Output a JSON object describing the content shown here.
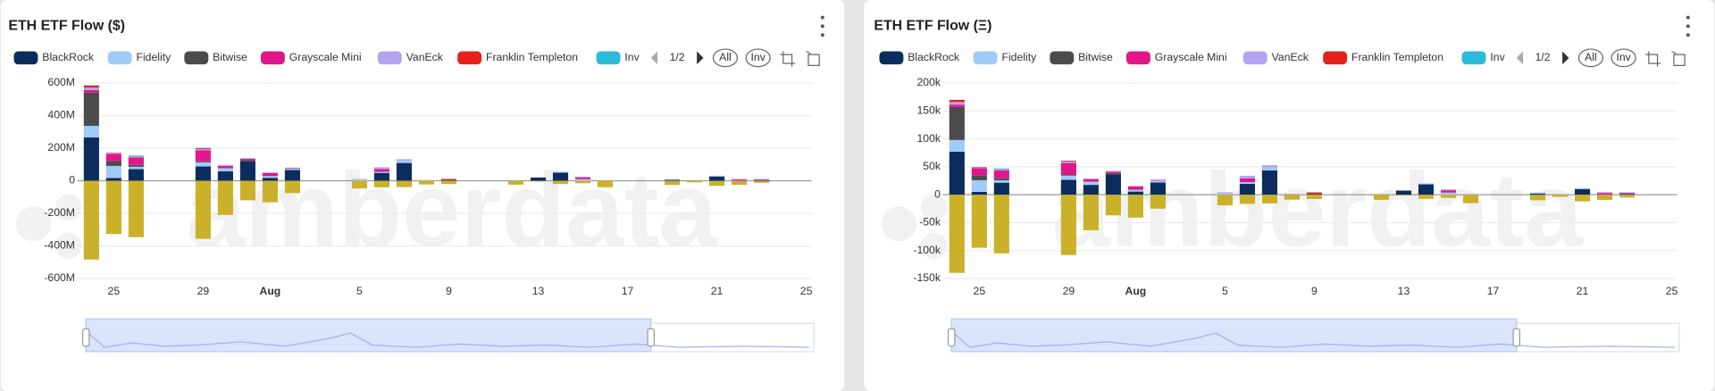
{
  "chart_data": [
    {
      "type": "bar",
      "stacked": true,
      "title": "ETH ETF Flow ($)",
      "categories": [
        null,
        "25",
        null,
        null,
        null,
        "29",
        null,
        null,
        "Aug",
        null,
        null,
        null,
        "5",
        null,
        null,
        null,
        "9",
        null,
        null,
        null,
        "13",
        null,
        null,
        null,
        "17",
        null,
        null,
        null,
        "21",
        null,
        null,
        null,
        "25"
      ],
      "series": [
        {
          "name": "BlackRock",
          "color": "#0b2d5e",
          "values": [
            266000000.0,
            17000000.0,
            71000000.0,
            null,
            null,
            88000000.0,
            58000000.0,
            119000000.0,
            18000000.0,
            66000000.0,
            null,
            null,
            0,
            48000000.0,
            109000000.0,
            0,
            0,
            null,
            null,
            0,
            20000000.0,
            50000000.0,
            0,
            0,
            null,
            null,
            5000000.0,
            0,
            26000000.0,
            0,
            4000000.0,
            null,
            null
          ]
        },
        {
          "name": "Fidelity",
          "color": "#9ecbf7",
          "values": [
            71000000.0,
            74000000.0,
            15000000.0,
            null,
            null,
            25000000.0,
            19000000.0,
            0,
            11000000.0,
            10000000.0,
            null,
            null,
            6000000.0,
            7000000.0,
            13000000.0,
            0,
            0,
            null,
            null,
            0,
            0,
            5000000.0,
            10000000.0,
            0,
            null,
            null,
            6000000.0,
            0,
            5000000.0,
            0,
            0,
            null,
            null
          ]
        },
        {
          "name": "Bitwise",
          "color": "#4b4b4b",
          "values": [
            204000000.0,
            29000000.0,
            11000000.0,
            null,
            null,
            6000000.0,
            0,
            7000000.0,
            0,
            0,
            null,
            null,
            0,
            0,
            0,
            0,
            6000000.0,
            null,
            null,
            0,
            0,
            0,
            0,
            0,
            null,
            null,
            0,
            0,
            0,
            0,
            0,
            null,
            null
          ]
        },
        {
          "name": "Grayscale Mini",
          "color": "#e0168a",
          "values": [
            15000000.0,
            45000000.0,
            46000000.0,
            null,
            null,
            68000000.0,
            16000000.0,
            8000000.0,
            19000000.0,
            4000000.0,
            null,
            null,
            0,
            16000000.0,
            0,
            0,
            0,
            null,
            null,
            0,
            0,
            0,
            11000000.0,
            0,
            null,
            null,
            0,
            0,
            0,
            7000000.0,
            3000000.0,
            null,
            null
          ]
        },
        {
          "name": "VanEck",
          "color": "#b4a3f0",
          "values": [
            16000000.0,
            6000000.0,
            7000000.0,
            null,
            null,
            8000000.0,
            0,
            5000000.0,
            3000000.0,
            0,
            null,
            null,
            5000000.0,
            12000000.0,
            10000000.0,
            4000000.0,
            0,
            null,
            null,
            0,
            0,
            0,
            4000000.0,
            0,
            null,
            null,
            0,
            0,
            0,
            5000000.0,
            5000000.0,
            null,
            null
          ]
        },
        {
          "name": "Franklin Templeton",
          "color": "#e3221b",
          "values": [
            13000000.0,
            2000000.0,
            1000000.0,
            null,
            null,
            5000000.0,
            0,
            0,
            0,
            0,
            null,
            null,
            0,
            0,
            0,
            0,
            5000000.0,
            null,
            null,
            0,
            0,
            0,
            0,
            0,
            null,
            null,
            0,
            0,
            0,
            0,
            0,
            null,
            null
          ]
        },
        {
          "name": "Inv",
          "color": "#2bbbd8",
          "values": [
            1000000.0,
            0,
            4000000.0,
            null,
            null,
            2000000.0,
            0,
            0,
            0,
            0,
            null,
            null,
            0,
            0,
            0,
            0,
            0,
            null,
            null,
            0,
            0,
            0,
            0,
            0,
            null,
            null,
            0,
            0,
            0,
            0,
            0,
            null,
            null
          ]
        },
        {
          "name": null,
          "color": "#cbb12a",
          "values": [
            -484000000.0,
            -327000000.0,
            -346000000.0,
            null,
            null,
            -356000000.0,
            -210000000.0,
            -120000000.0,
            -132000000.0,
            -76000000.0,
            null,
            null,
            -47000000.0,
            -40000000.0,
            -39000000.0,
            -23000000.0,
            -20000000.0,
            null,
            null,
            -24000000.0,
            -4000000.0,
            -20000000.0,
            -15000000.0,
            -40000000.0,
            null,
            null,
            -26000000.0,
            -10000000.0,
            -31000000.0,
            -25000000.0,
            -13000000.0,
            null,
            null
          ]
        }
      ],
      "ylim": [
        -600000000.0,
        600000000.0
      ],
      "yticks": [
        {
          "value": -600000000.0,
          "label": "-600M"
        },
        {
          "value": -400000000.0,
          "label": "-400M"
        },
        {
          "value": -200000000.0,
          "label": "-200M"
        },
        0,
        {
          "value": 200000000.0,
          "label": "200M"
        },
        {
          "value": 400000000.0,
          "label": "400M"
        },
        {
          "value": 600000000.0,
          "label": "600M"
        }
      ],
      "grid": true,
      "legend_page": "1/2",
      "controls": [
        "All",
        "Inv"
      ],
      "watermark": "amberdata"
    },
    {
      "type": "bar",
      "stacked": true,
      "title": "ETH ETF Flow (Ξ)",
      "categories": [
        null,
        "25",
        null,
        null,
        null,
        "29",
        null,
        null,
        "Aug",
        null,
        null,
        null,
        "5",
        null,
        null,
        null,
        "9",
        null,
        null,
        null,
        "13",
        null,
        null,
        null,
        "17",
        null,
        null,
        null,
        "21",
        null,
        null,
        null,
        "25"
      ],
      "series": [
        {
          "name": "BlackRock",
          "color": "#0b2d5e",
          "values": [
            77000,
            5000,
            21500,
            null,
            null,
            26700,
            17600,
            36600,
            5600,
            22000,
            null,
            null,
            0,
            19600,
            43600,
            0,
            0,
            null,
            null,
            0,
            7400,
            18500,
            0,
            0,
            null,
            null,
            1900,
            0,
            10000,
            0,
            1500,
            null,
            null
          ]
        },
        {
          "name": "Fidelity",
          "color": "#9ecbf7",
          "values": [
            21000,
            21000,
            4500,
            null,
            null,
            7600,
            5800,
            0,
            3400,
            3300,
            null,
            null,
            2400,
            2900,
            5200,
            0,
            0,
            null,
            null,
            0,
            0,
            1900,
            3800,
            0,
            null,
            null,
            2300,
            0,
            1900,
            0,
            0,
            null,
            null
          ]
        },
        {
          "name": "Bitwise",
          "color": "#4b4b4b",
          "values": [
            59000,
            8400,
            3300,
            null,
            null,
            1800,
            0,
            2200,
            0,
            0,
            null,
            null,
            0,
            0,
            0,
            0,
            2300,
            null,
            null,
            0,
            0,
            0,
            0,
            0,
            null,
            null,
            0,
            0,
            0,
            0,
            0,
            null,
            null
          ]
        },
        {
          "name": "Grayscale Mini",
          "color": "#e0168a",
          "values": [
            4300,
            13000,
            14000,
            null,
            null,
            20600,
            4800,
            2500,
            5900,
            1300,
            null,
            null,
            0,
            6500,
            0,
            0,
            0,
            null,
            null,
            0,
            0,
            0,
            4200,
            0,
            null,
            null,
            0,
            0,
            0,
            2700,
            1100,
            null,
            null
          ]
        },
        {
          "name": "VanEck",
          "color": "#b4a3f0",
          "values": [
            4600,
            1700,
            2100,
            null,
            null,
            2400,
            0,
            1500,
            900,
            0,
            null,
            null,
            2000,
            4900,
            4000,
            1500,
            0,
            null,
            null,
            0,
            0,
            0,
            1500,
            0,
            null,
            null,
            0,
            0,
            0,
            1900,
            1900,
            null,
            null
          ]
        },
        {
          "name": "Franklin Templeton",
          "color": "#e3221b",
          "values": [
            3800,
            600,
            300,
            null,
            null,
            1500,
            0,
            0,
            0,
            0,
            null,
            null,
            0,
            0,
            0,
            0,
            1900,
            null,
            null,
            0,
            0,
            0,
            0,
            0,
            null,
            null,
            0,
            0,
            0,
            0,
            0,
            null,
            null
          ]
        },
        {
          "name": "Inv",
          "color": "#2bbbd8",
          "values": [
            300,
            0,
            1200,
            null,
            null,
            600,
            0,
            0,
            0,
            0,
            null,
            null,
            0,
            0,
            0,
            0,
            0,
            null,
            null,
            0,
            0,
            0,
            0,
            0,
            null,
            null,
            0,
            0,
            0,
            0,
            0,
            null,
            null
          ]
        },
        {
          "name": null,
          "color": "#cbb12a",
          "values": [
            -140000,
            -95000,
            -105000,
            null,
            null,
            -108000,
            -63600,
            -37000,
            -41000,
            -25000,
            null,
            null,
            -19000,
            -16300,
            -15600,
            -8800,
            -7700,
            null,
            null,
            -9200,
            -1500,
            -7400,
            -5700,
            -15000,
            null,
            null,
            -10000,
            -3800,
            -12000,
            -9600,
            -5000,
            null,
            null
          ]
        }
      ],
      "ylim": [
        -150000,
        200000
      ],
      "yticks": [
        {
          "value": -150000,
          "label": "-150k"
        },
        {
          "value": -100000,
          "label": "-100k"
        },
        {
          "value": -50000,
          "label": "-50k"
        },
        0,
        {
          "value": 50000,
          "label": "50k"
        },
        {
          "value": 100000,
          "label": "100k"
        },
        {
          "value": 150000,
          "label": "150k"
        },
        {
          "value": 200000,
          "label": "200k"
        }
      ],
      "grid": true,
      "legend_page": "1/2",
      "controls": [
        "All",
        "Inv"
      ],
      "watermark": "amberdata"
    }
  ]
}
